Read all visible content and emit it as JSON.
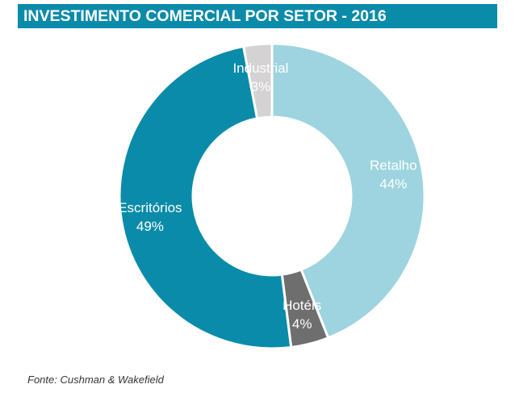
{
  "header": {
    "title": "INVESTIMENTO COMERCIAL POR SETOR - 2016"
  },
  "chart_data": {
    "type": "pie",
    "variant": "donut",
    "title": "INVESTIMENTO COMERCIAL POR SETOR - 2016",
    "slices": [
      {
        "label": "Retalho",
        "value": 44,
        "value_text": "44%",
        "color": "#9dd4df"
      },
      {
        "label": "Hotéis",
        "value": 4,
        "value_text": "4%",
        "color": "#6e6e6e"
      },
      {
        "label": "Escritórios",
        "value": 49,
        "value_text": "49%",
        "color": "#0a8ba9"
      },
      {
        "label": "Industrial",
        "value": 3,
        "value_text": "3%",
        "color": "#d4d2d2"
      }
    ],
    "legend": "none",
    "start_direction": "top",
    "direction": "clockwise"
  },
  "footer": {
    "source": "Fonte: Cushman & Wakefield"
  }
}
